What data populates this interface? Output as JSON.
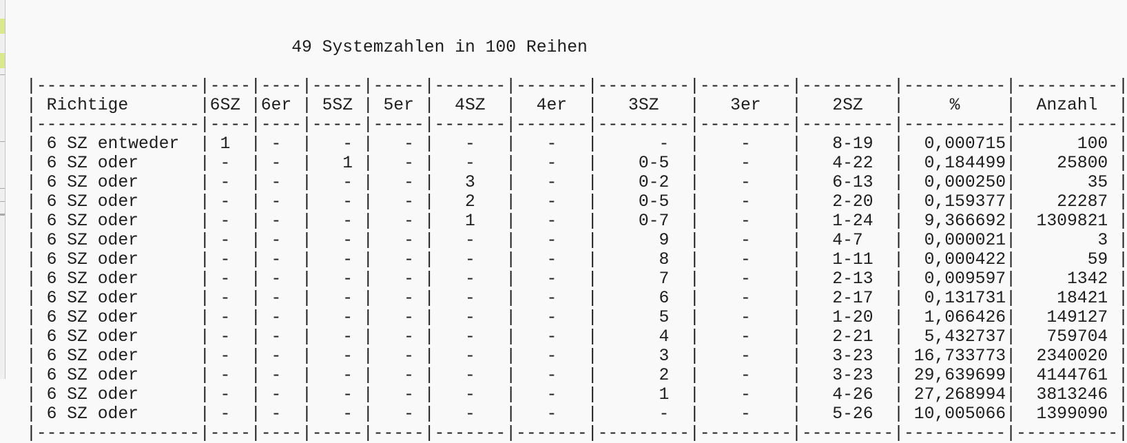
{
  "title": "49 Systemzahlen in 100 Reihen",
  "columns": [
    "Richtige",
    "6SZ",
    "6er",
    "5SZ",
    "5er",
    "4SZ",
    "4er",
    "3SZ",
    "3er",
    "2SZ",
    "%",
    "Anzahl"
  ],
  "rows": [
    {
      "label": "6 SZ entweder",
      "cells": [
        "1",
        "-",
        "-",
        "-",
        "-",
        "-",
        "-",
        "-",
        "8-19",
        "0,000715",
        "100"
      ]
    },
    {
      "label": "6 SZ oder",
      "cells": [
        "-",
        "-",
        "1",
        "-",
        "-",
        "-",
        "0-5",
        "-",
        "4-22",
        "0,184499",
        "25800"
      ]
    },
    {
      "label": "6 SZ oder",
      "cells": [
        "-",
        "-",
        "-",
        "-",
        "3",
        "-",
        "0-2",
        "-",
        "6-13",
        "0,000250",
        "35"
      ]
    },
    {
      "label": "6 SZ oder",
      "cells": [
        "-",
        "-",
        "-",
        "-",
        "2",
        "-",
        "0-5",
        "-",
        "2-20",
        "0,159377",
        "22287"
      ]
    },
    {
      "label": "6 SZ oder",
      "cells": [
        "-",
        "-",
        "-",
        "-",
        "1",
        "-",
        "0-7",
        "-",
        "1-24",
        "9,366692",
        "1309821"
      ]
    },
    {
      "label": "6 SZ oder",
      "cells": [
        "-",
        "-",
        "-",
        "-",
        "-",
        "-",
        "9",
        "-",
        "4-7",
        "0,000021",
        "3"
      ]
    },
    {
      "label": "6 SZ oder",
      "cells": [
        "-",
        "-",
        "-",
        "-",
        "-",
        "-",
        "8",
        "-",
        "1-11",
        "0,000422",
        "59"
      ]
    },
    {
      "label": "6 SZ oder",
      "cells": [
        "-",
        "-",
        "-",
        "-",
        "-",
        "-",
        "7",
        "-",
        "2-13",
        "0,009597",
        "1342"
      ]
    },
    {
      "label": "6 SZ oder",
      "cells": [
        "-",
        "-",
        "-",
        "-",
        "-",
        "-",
        "6",
        "-",
        "2-17",
        "0,131731",
        "18421"
      ]
    },
    {
      "label": "6 SZ oder",
      "cells": [
        "-",
        "-",
        "-",
        "-",
        "-",
        "-",
        "5",
        "-",
        "1-20",
        "1,066426",
        "149127"
      ]
    },
    {
      "label": "6 SZ oder",
      "cells": [
        "-",
        "-",
        "-",
        "-",
        "-",
        "-",
        "4",
        "-",
        "2-21",
        "5,432737",
        "759704"
      ]
    },
    {
      "label": "6 SZ oder",
      "cells": [
        "-",
        "-",
        "-",
        "-",
        "-",
        "-",
        "3",
        "-",
        "3-23",
        "16,733773",
        "2340020"
      ]
    },
    {
      "label": "6 SZ oder",
      "cells": [
        "-",
        "-",
        "-",
        "-",
        "-",
        "-",
        "2",
        "-",
        "3-23",
        "29,639699",
        "4144761"
      ]
    },
    {
      "label": "6 SZ oder",
      "cells": [
        "-",
        "-",
        "-",
        "-",
        "-",
        "-",
        "1",
        "-",
        "4-26",
        "27,268994",
        "3813246"
      ]
    },
    {
      "label": "6 SZ oder",
      "cells": [
        "-",
        "-",
        "-",
        "-",
        "-",
        "-",
        "-",
        "-",
        "5-26",
        "10,005066",
        "1399090"
      ]
    }
  ],
  "colors": {
    "text": "#1e1e1e",
    "background": "#f9f9f9",
    "left_strip_highlight": "#dbe98e"
  }
}
